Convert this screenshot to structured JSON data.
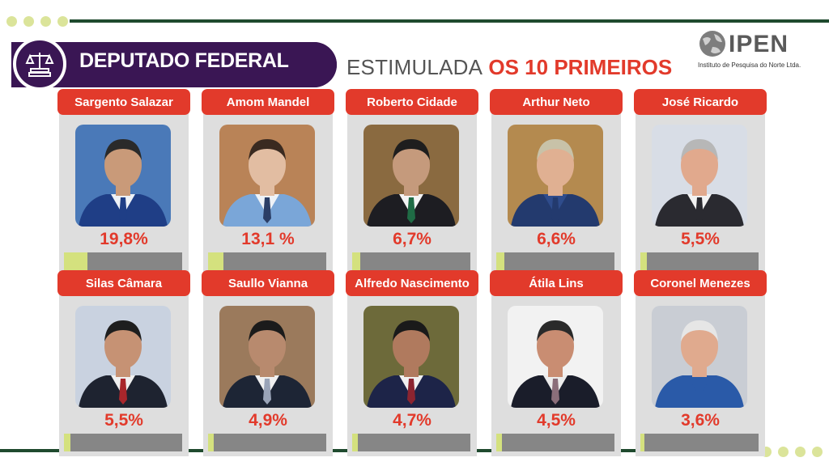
{
  "header": {
    "title": "DEPUTADO FEDERAL",
    "subtitle_plain": "ESTIMULADA",
    "subtitle_bold": "OS 10 PRIMEIROS"
  },
  "logo": {
    "name": "IPEN",
    "tagline": "Instituto de Pesquisa do Norte Ltda."
  },
  "colors": {
    "accent_red": "#e23a2b",
    "purple": "#3a1654",
    "bar_fill": "#d4e17e",
    "bar_track": "#868686",
    "card_bg": "#dedede",
    "line_green": "#1f4a2e",
    "dot_yellow": "#dbe49a"
  },
  "icons": {
    "emblem": "scales-of-justice-icon",
    "logo_mark": "globe-icon"
  },
  "chart_data": {
    "type": "bar",
    "categories": [
      "Sargento Salazar",
      "Amom Mandel",
      "Roberto Cidade",
      "Arthur Neto",
      "José Ricardo",
      "Silas Câmara",
      "Saullo Vianna",
      "Alfredo Nascimento",
      "Átila Lins",
      "Coronel Menezes"
    ],
    "values": [
      19.8,
      13.1,
      6.7,
      6.6,
      5.5,
      5.5,
      4.9,
      4.7,
      4.5,
      3.6
    ],
    "value_labels": [
      "19,8%",
      "13,1 %",
      "6,7%",
      "6,6%",
      "5,5%",
      "5,5%",
      "4,9%",
      "4,7%",
      "4,5%",
      "3,6%"
    ],
    "ylim": [
      0,
      100
    ],
    "title": "DEPUTADO FEDERAL"
  },
  "candidates": [
    {
      "name": "Sargento Salazar",
      "pct_label": "19,8%",
      "value": 19.8,
      "bg": "#4a79b8",
      "skin": "#c99a79",
      "hair": "#2a2a2a",
      "suit": "#1f3e86",
      "tie": "#1f3e86",
      "shirt": "#eef2f7"
    },
    {
      "name": "Amom Mandel",
      "pct_label": "13,1 %",
      "value": 13.1,
      "bg": "#b98357",
      "skin": "#e2bda2",
      "hair": "#3a2a20",
      "suit": "#7aa6d8",
      "tie": "#2b3e66",
      "shirt": "#eef2f7"
    },
    {
      "name": "Roberto Cidade",
      "pct_label": "6,7%",
      "value": 6.7,
      "bg": "#8a6a40",
      "skin": "#c59a7c",
      "hair": "#1e1e1e",
      "suit": "#1d1d22",
      "tie": "#1f6b45",
      "shirt": "#f4f4f4"
    },
    {
      "name": "Arthur Neto",
      "pct_label": "6,6%",
      "value": 6.6,
      "bg": "#b48a4f",
      "skin": "#e0b092",
      "hair": "#c8c2a8",
      "suit": "#233a6e",
      "tie": "#233a6e",
      "shirt": "#2f4c8c"
    },
    {
      "name": "José Ricardo",
      "pct_label": "5,5%",
      "value": 5.5,
      "bg": "#d8dde6",
      "skin": "#e1a98d",
      "hair": "#b7b7b7",
      "suit": "#2a2a30",
      "tie": "#2a2a30",
      "shirt": "#f2f2f2"
    },
    {
      "name": "Silas Câmara",
      "pct_label": "5,5%",
      "value": 5.5,
      "bg": "#c9d2e0",
      "skin": "#c69274",
      "hair": "#1e1e1e",
      "suit": "#1e2330",
      "tie": "#a8262b",
      "shirt": "#f0f0f0"
    },
    {
      "name": "Saullo Vianna",
      "pct_label": "4,9%",
      "value": 4.9,
      "bg": "#9b7a5c",
      "skin": "#b88a6e",
      "hair": "#1b1b1b",
      "suit": "#1d2535",
      "tie": "#9aa4b8",
      "shirt": "#f0f0f0"
    },
    {
      "name": "Alfredo Nascimento",
      "pct_label": "4,7%",
      "value": 4.7,
      "bg": "#6d6a3a",
      "skin": "#b07a5e",
      "hair": "#1a1a1a",
      "suit": "#1d2448",
      "tie": "#8c2430",
      "shirt": "#f0f0f0"
    },
    {
      "name": "Átila Lins",
      "pct_label": "4,5%",
      "value": 4.5,
      "bg": "#f2f2f2",
      "skin": "#c98d72",
      "hair": "#2a2a2a",
      "suit": "#1a1d2a",
      "tie": "#8a6e7a",
      "shirt": "#ececec"
    },
    {
      "name": "Coronel Menezes",
      "pct_label": "3,6%",
      "value": 3.6,
      "bg": "#c9cdd4",
      "skin": "#e0aa8e",
      "hair": "#e6e6e6",
      "suit": "#2a5aa8",
      "tie": "#2a5aa8",
      "shirt": "#2a5aa8"
    }
  ]
}
